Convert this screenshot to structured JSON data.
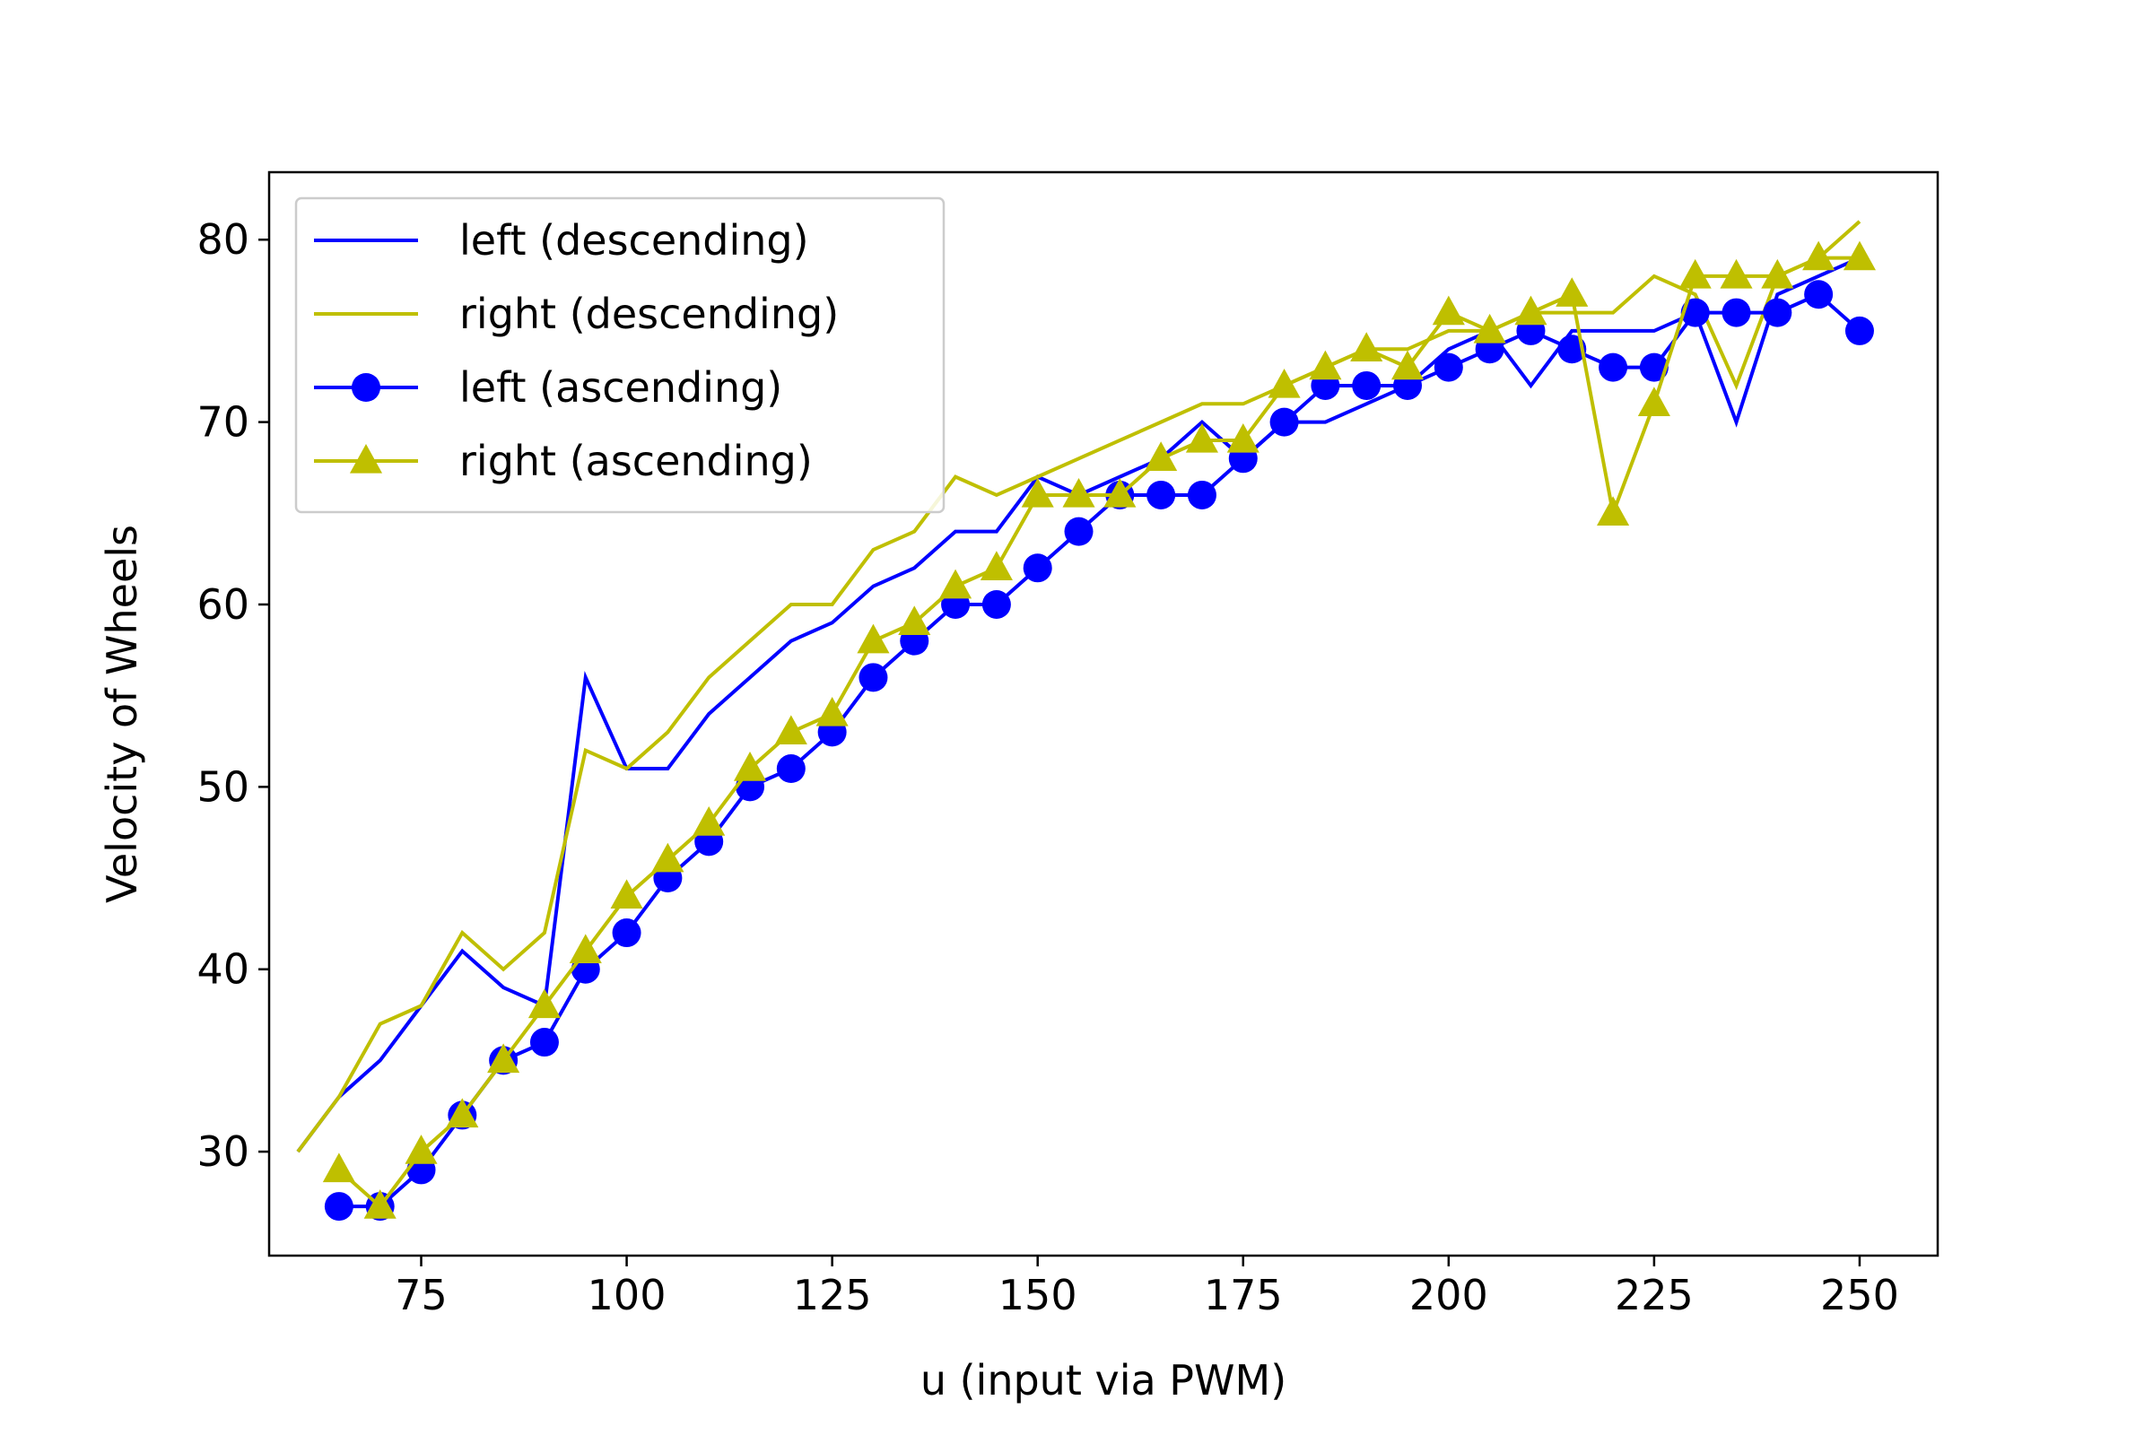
{
  "chart_data": {
    "type": "line",
    "title": "",
    "xlabel": "u (input via PWM)",
    "ylabel": "Velocity of Wheels",
    "xlim": [
      56.5,
      259.5
    ],
    "ylim": [
      24.3,
      83.7
    ],
    "xticks": [
      75,
      100,
      125,
      150,
      175,
      200,
      225,
      250
    ],
    "yticks": [
      30,
      40,
      50,
      60,
      70,
      80
    ],
    "grid": false,
    "legend_position": "upper left",
    "series": [
      {
        "name": "left (descending)",
        "color": "#0000ff",
        "marker": "none",
        "x": [
          60,
          65,
          70,
          75,
          80,
          85,
          90,
          95,
          100,
          105,
          110,
          115,
          120,
          125,
          130,
          135,
          140,
          145,
          150,
          155,
          160,
          165,
          170,
          175,
          180,
          185,
          190,
          195,
          200,
          205,
          210,
          215,
          220,
          225,
          230,
          235,
          240,
          245,
          250
        ],
        "y": [
          30,
          33,
          35,
          38,
          41,
          39,
          38,
          56,
          51,
          51,
          54,
          56,
          58,
          59,
          61,
          62,
          64,
          64,
          67,
          66,
          67,
          68,
          70,
          68,
          70,
          70,
          71,
          72,
          74,
          75,
          72,
          75,
          75,
          75,
          76,
          70,
          77,
          78,
          79
        ]
      },
      {
        "name": "right (descending)",
        "color": "#bfbf00",
        "marker": "none",
        "x": [
          60,
          65,
          70,
          75,
          80,
          85,
          90,
          95,
          100,
          105,
          110,
          115,
          120,
          125,
          130,
          135,
          140,
          145,
          150,
          155,
          160,
          165,
          170,
          175,
          180,
          185,
          190,
          195,
          200,
          205,
          210,
          215,
          220,
          225,
          230,
          235,
          240,
          245,
          250
        ],
        "y": [
          30,
          33,
          37,
          38,
          42,
          40,
          42,
          52,
          51,
          53,
          56,
          58,
          60,
          60,
          63,
          64,
          67,
          66,
          67,
          68,
          69,
          70,
          71,
          71,
          72,
          73,
          74,
          74,
          75,
          75,
          76,
          76,
          76,
          78,
          77,
          72,
          78,
          79,
          81
        ]
      },
      {
        "name": "left (ascending)",
        "color": "#0000ff",
        "marker": "circle",
        "x": [
          65,
          70,
          75,
          80,
          85,
          90,
          95,
          100,
          105,
          110,
          115,
          120,
          125,
          130,
          135,
          140,
          145,
          150,
          155,
          160,
          165,
          170,
          175,
          180,
          185,
          190,
          195,
          200,
          205,
          210,
          215,
          220,
          225,
          230,
          235,
          240,
          245,
          250
        ],
        "y": [
          27,
          27,
          29,
          32,
          35,
          36,
          40,
          42,
          45,
          47,
          50,
          51,
          53,
          56,
          58,
          60,
          60,
          62,
          64,
          66,
          66,
          66,
          68,
          70,
          72,
          72,
          72,
          73,
          74,
          75,
          74,
          73,
          73,
          76,
          76,
          76,
          77,
          75
        ]
      },
      {
        "name": "right (ascending)",
        "color": "#bfbf00",
        "marker": "triangle",
        "x": [
          65,
          70,
          75,
          80,
          85,
          90,
          95,
          100,
          105,
          110,
          115,
          120,
          125,
          130,
          135,
          140,
          145,
          150,
          155,
          160,
          165,
          170,
          175,
          180,
          185,
          190,
          195,
          200,
          205,
          210,
          215,
          220,
          225,
          230,
          235,
          240,
          245,
          250
        ],
        "y": [
          29,
          27,
          30,
          32,
          35,
          38,
          41,
          44,
          46,
          48,
          51,
          53,
          54,
          58,
          59,
          61,
          62,
          66,
          66,
          66,
          68,
          69,
          69,
          72,
          73,
          74,
          73,
          76,
          75,
          76,
          77,
          65,
          71,
          78,
          78,
          78,
          79,
          79
        ]
      }
    ]
  }
}
